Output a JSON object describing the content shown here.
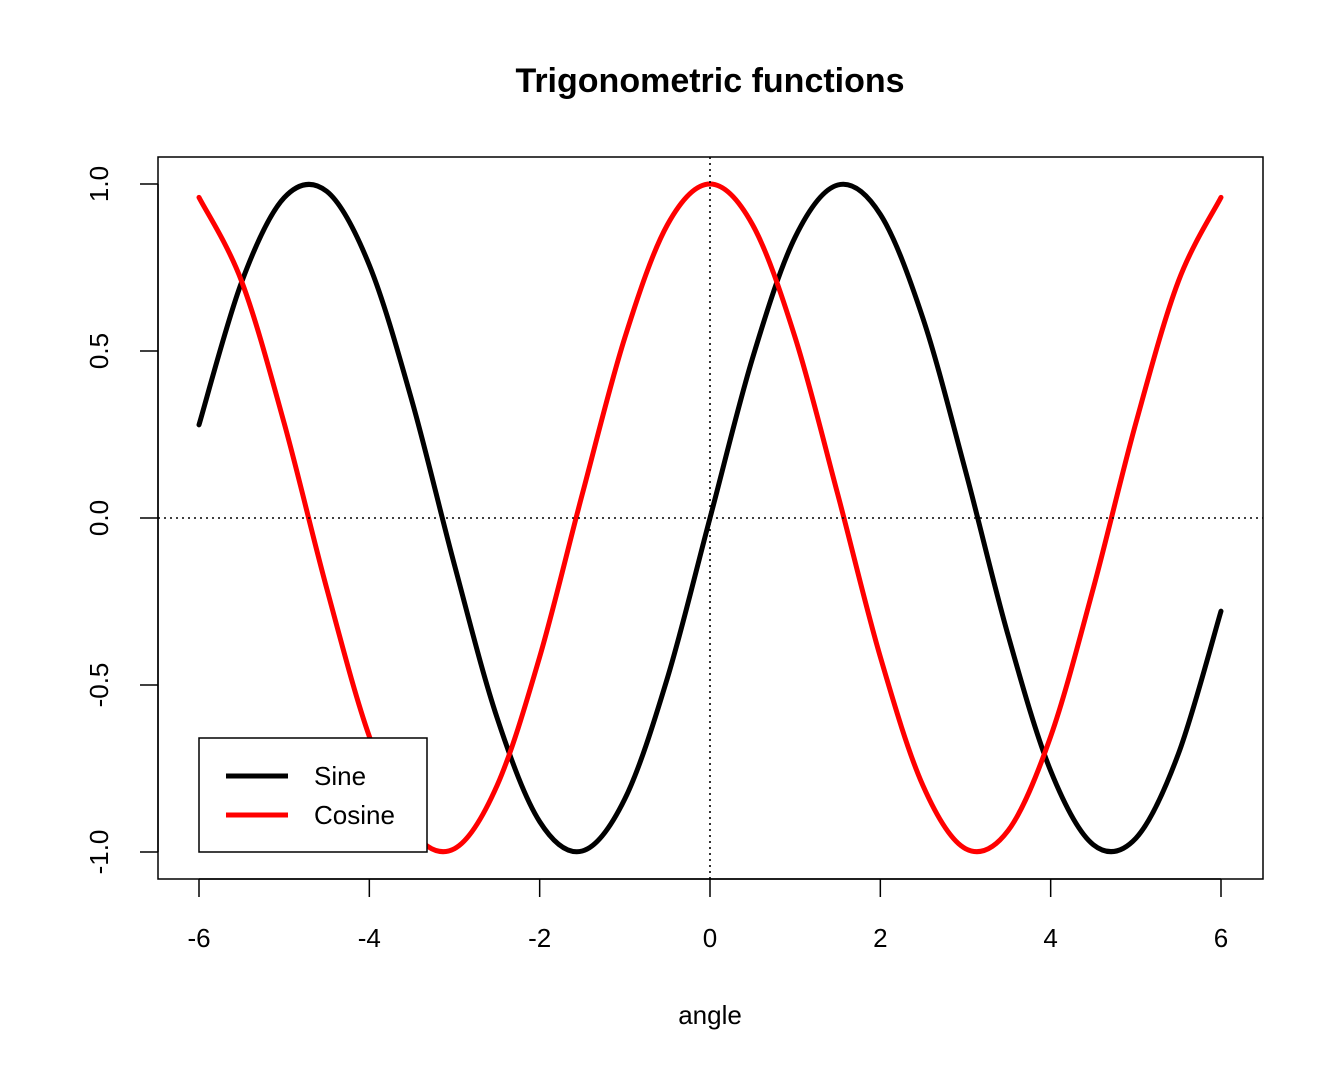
{
  "chart_data": {
    "type": "line",
    "title": "Trigonometric functions",
    "xlabel": "angle",
    "ylabel": "",
    "xlim": [
      -6,
      6
    ],
    "ylim": [
      -1,
      1
    ],
    "x_ticks": [
      -6,
      -4,
      -2,
      0,
      2,
      4,
      6
    ],
    "x_tick_labels": [
      "-6",
      "-4",
      "-2",
      "0",
      "2",
      "4",
      "6"
    ],
    "y_ticks": [
      -1,
      -0.5,
      0,
      0.5,
      1
    ],
    "y_tick_labels": [
      "-1.0",
      "-0.5",
      "0.0",
      "0.5",
      "1.0"
    ],
    "reference_lines": [
      {
        "orientation": "horizontal",
        "value": 0,
        "style": "dotted"
      },
      {
        "orientation": "vertical",
        "value": 0,
        "style": "dotted"
      }
    ],
    "x": [
      -6,
      -5.5,
      -5,
      -4.5,
      -4,
      -3.5,
      -3,
      -2.5,
      -2,
      -1.5,
      -1,
      -0.5,
      0,
      0.5,
      1,
      1.5,
      2,
      2.5,
      3,
      3.5,
      4,
      4.5,
      5,
      5.5,
      6
    ],
    "series": [
      {
        "name": "Sine",
        "color": "#000000",
        "values": [
          0.279,
          0.706,
          0.959,
          0.978,
          0.757,
          0.351,
          -0.141,
          -0.598,
          -0.909,
          -0.997,
          -0.841,
          -0.479,
          0.0,
          0.479,
          0.841,
          0.997,
          0.909,
          0.598,
          0.141,
          -0.351,
          -0.757,
          -0.978,
          -0.959,
          -0.706,
          -0.279
        ]
      },
      {
        "name": "Cosine",
        "color": "#ff0000",
        "values": [
          0.96,
          0.709,
          0.284,
          -0.211,
          -0.654,
          -0.936,
          -0.99,
          -0.801,
          -0.416,
          0.071,
          0.54,
          0.878,
          1.0,
          0.878,
          0.54,
          0.071,
          -0.416,
          -0.801,
          -0.99,
          -0.936,
          -0.654,
          -0.211,
          0.284,
          0.709,
          0.96
        ]
      }
    ],
    "legend": {
      "position": "bottom-left",
      "entries": [
        {
          "label": "Sine",
          "color": "#000000"
        },
        {
          "label": "Cosine",
          "color": "#ff0000"
        }
      ]
    },
    "grid": false
  }
}
